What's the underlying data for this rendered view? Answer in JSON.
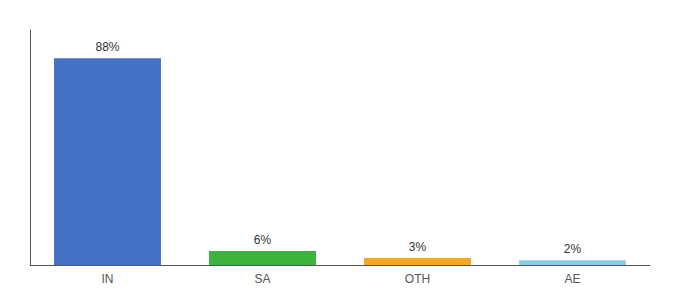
{
  "chart_data": {
    "type": "bar",
    "categories": [
      "IN",
      "SA",
      "OTH",
      "AE"
    ],
    "values": [
      88,
      6,
      3,
      2
    ],
    "value_labels": [
      "88%",
      "6%",
      "3%",
      "2%"
    ],
    "colors": [
      "#4472c4",
      "#3cb33c",
      "#f5a623",
      "#87ceeb"
    ],
    "ylim": [
      0,
      100
    ],
    "grid": false,
    "data_labels": true,
    "tick_labels": "x"
  }
}
